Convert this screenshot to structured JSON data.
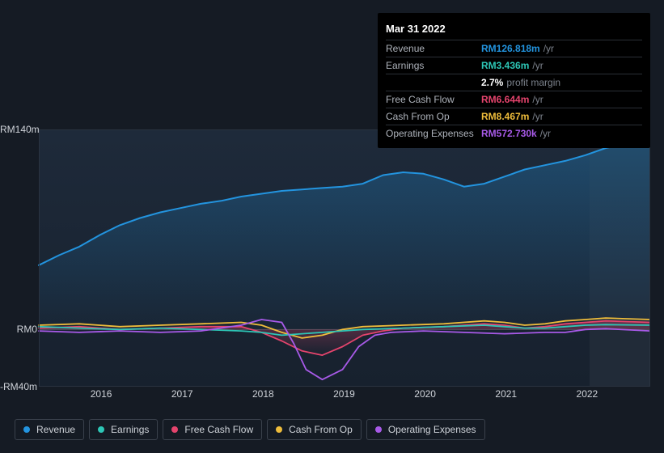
{
  "tooltip": {
    "date": "Mar 31 2022",
    "rows": [
      {
        "label": "Revenue",
        "value": "RM126.818m",
        "suffix": "/yr",
        "color": "#2394df"
      },
      {
        "label": "Earnings",
        "value": "RM3.436m",
        "suffix": "/yr",
        "color": "#2dc6b6"
      },
      {
        "label": "",
        "value": "2.7%",
        "suffix": "profit margin",
        "color": "#ffffff"
      },
      {
        "label": "Free Cash Flow",
        "value": "RM6.644m",
        "suffix": "/yr",
        "color": "#e5446d"
      },
      {
        "label": "Cash From Op",
        "value": "RM8.467m",
        "suffix": "/yr",
        "color": "#eebc3b"
      },
      {
        "label": "Operating Expenses",
        "value": "RM572.730k",
        "suffix": "/yr",
        "color": "#a85ae8"
      }
    ]
  },
  "chart": {
    "type": "area-line",
    "background_color": "#151b24",
    "plot_bg_gradient_top": "#1e2a3a",
    "plot_bg_gradient_bottom": "#17212e",
    "future_band_color": "#222c3a",
    "zero_line_color": "#6a737f",
    "y_labels": [
      {
        "text": "RM140m",
        "frac": 0.0
      },
      {
        "text": "RM0",
        "frac": 0.778
      },
      {
        "text": "-RM40m",
        "frac": 1.0
      }
    ],
    "x_years": [
      2016,
      2017,
      2018,
      2019,
      2020,
      2021,
      2022
    ],
    "x_domain": [
      2015.25,
      2022.8
    ],
    "y_domain": [
      -40,
      140
    ],
    "highlight_x": 2022.25,
    "future_start_x": 2022.05,
    "series": [
      {
        "id": "revenue",
        "label": "Revenue",
        "color": "#2394df",
        "fill": true,
        "fill_opacity_top": 0.32,
        "fill_opacity_bottom": 0.02,
        "width": 2,
        "points": [
          [
            2015.25,
            45
          ],
          [
            2015.5,
            52
          ],
          [
            2015.75,
            58
          ],
          [
            2016.0,
            66
          ],
          [
            2016.25,
            73
          ],
          [
            2016.5,
            78
          ],
          [
            2016.75,
            82
          ],
          [
            2017.0,
            85
          ],
          [
            2017.25,
            88
          ],
          [
            2017.5,
            90
          ],
          [
            2017.75,
            93
          ],
          [
            2018.0,
            95
          ],
          [
            2018.25,
            97
          ],
          [
            2018.5,
            98
          ],
          [
            2018.75,
            99
          ],
          [
            2019.0,
            100
          ],
          [
            2019.25,
            102
          ],
          [
            2019.5,
            108
          ],
          [
            2019.75,
            110
          ],
          [
            2020.0,
            109
          ],
          [
            2020.25,
            105
          ],
          [
            2020.5,
            100
          ],
          [
            2020.75,
            102
          ],
          [
            2021.0,
            107
          ],
          [
            2021.25,
            112
          ],
          [
            2021.5,
            115
          ],
          [
            2021.75,
            118
          ],
          [
            2022.0,
            122
          ],
          [
            2022.25,
            127
          ],
          [
            2022.5,
            130
          ],
          [
            2022.8,
            134
          ]
        ]
      },
      {
        "id": "cash_from_op",
        "label": "Cash From Op",
        "color": "#eebc3b",
        "fill": false,
        "width": 1.8,
        "points": [
          [
            2015.25,
            3
          ],
          [
            2015.75,
            4
          ],
          [
            2016.25,
            2
          ],
          [
            2016.75,
            3
          ],
          [
            2017.25,
            4
          ],
          [
            2017.75,
            5
          ],
          [
            2018.0,
            3
          ],
          [
            2018.25,
            -2
          ],
          [
            2018.5,
            -6
          ],
          [
            2018.75,
            -4
          ],
          [
            2019.0,
            0
          ],
          [
            2019.25,
            2
          ],
          [
            2019.75,
            3
          ],
          [
            2020.25,
            4
          ],
          [
            2020.75,
            6
          ],
          [
            2021.0,
            5
          ],
          [
            2021.25,
            3
          ],
          [
            2021.5,
            4
          ],
          [
            2021.75,
            6
          ],
          [
            2022.0,
            7
          ],
          [
            2022.25,
            8
          ],
          [
            2022.8,
            7
          ]
        ]
      },
      {
        "id": "free_cash_flow",
        "label": "Free Cash Flow",
        "color": "#e5446d",
        "fill": true,
        "fill_opacity_top": 0.35,
        "fill_opacity_bottom": 0.0,
        "width": 1.8,
        "points": [
          [
            2015.25,
            1
          ],
          [
            2015.75,
            2
          ],
          [
            2016.25,
            0
          ],
          [
            2016.75,
            1
          ],
          [
            2017.25,
            2
          ],
          [
            2017.75,
            2
          ],
          [
            2018.0,
            -2
          ],
          [
            2018.25,
            -8
          ],
          [
            2018.5,
            -15
          ],
          [
            2018.75,
            -18
          ],
          [
            2019.0,
            -12
          ],
          [
            2019.25,
            -4
          ],
          [
            2019.5,
            -1
          ],
          [
            2019.75,
            1
          ],
          [
            2020.25,
            2
          ],
          [
            2020.75,
            4
          ],
          [
            2021.0,
            3
          ],
          [
            2021.25,
            1
          ],
          [
            2021.5,
            2
          ],
          [
            2021.75,
            4
          ],
          [
            2022.0,
            5
          ],
          [
            2022.25,
            6
          ],
          [
            2022.8,
            5
          ]
        ]
      },
      {
        "id": "earnings",
        "label": "Earnings",
        "color": "#2dc6b6",
        "fill": false,
        "width": 1.8,
        "points": [
          [
            2015.25,
            2
          ],
          [
            2015.75,
            1
          ],
          [
            2016.25,
            0
          ],
          [
            2016.75,
            1
          ],
          [
            2017.25,
            0
          ],
          [
            2017.75,
            -1
          ],
          [
            2018.0,
            -2
          ],
          [
            2018.25,
            -4
          ],
          [
            2018.5,
            -3
          ],
          [
            2018.75,
            -2
          ],
          [
            2019.0,
            -1
          ],
          [
            2019.25,
            0
          ],
          [
            2019.75,
            1
          ],
          [
            2020.25,
            2
          ],
          [
            2020.75,
            3
          ],
          [
            2021.0,
            2
          ],
          [
            2021.25,
            1
          ],
          [
            2021.5,
            1
          ],
          [
            2021.75,
            2
          ],
          [
            2022.0,
            3
          ],
          [
            2022.25,
            3.4
          ],
          [
            2022.8,
            3
          ]
        ]
      },
      {
        "id": "opex",
        "label": "Operating Expenses",
        "color": "#a85ae8",
        "fill": false,
        "width": 1.8,
        "points": [
          [
            2015.25,
            -1
          ],
          [
            2015.75,
            -2
          ],
          [
            2016.25,
            -1
          ],
          [
            2016.75,
            -2
          ],
          [
            2017.25,
            -1
          ],
          [
            2017.75,
            3
          ],
          [
            2018.0,
            7
          ],
          [
            2018.25,
            5
          ],
          [
            2018.4,
            -10
          ],
          [
            2018.55,
            -28
          ],
          [
            2018.75,
            -35
          ],
          [
            2019.0,
            -28
          ],
          [
            2019.2,
            -12
          ],
          [
            2019.4,
            -4
          ],
          [
            2019.6,
            -2
          ],
          [
            2020.0,
            -1
          ],
          [
            2020.5,
            -2
          ],
          [
            2021.0,
            -3
          ],
          [
            2021.5,
            -2
          ],
          [
            2021.75,
            -2
          ],
          [
            2022.0,
            0
          ],
          [
            2022.25,
            0.6
          ],
          [
            2022.8,
            -1
          ]
        ]
      }
    ],
    "legend": [
      {
        "id": "revenue",
        "label": "Revenue",
        "color": "#2394df"
      },
      {
        "id": "earnings",
        "label": "Earnings",
        "color": "#2dc6b6"
      },
      {
        "id": "free_cash_flow",
        "label": "Free Cash Flow",
        "color": "#e5446d"
      },
      {
        "id": "cash_from_op",
        "label": "Cash From Op",
        "color": "#eebc3b"
      },
      {
        "id": "opex",
        "label": "Operating Expenses",
        "color": "#a85ae8"
      }
    ]
  }
}
